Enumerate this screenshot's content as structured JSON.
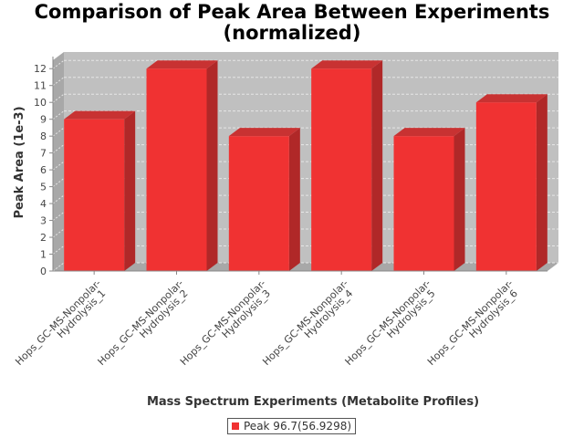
{
  "chart_data": {
    "type": "bar",
    "title_lines": [
      "Comparison of Peak Area Between Experiments",
      "(normalized)"
    ],
    "xlabel": "Mass Spectrum Experiments (Metabolite Profiles)",
    "ylabel": "Peak Area (1e-3)",
    "categories": [
      [
        "Hops_GC-MS-Nonpolar-",
        "Hydrolysis_1"
      ],
      [
        "Hops_GC-MS-Nonpolar-",
        "Hydrolysis_2"
      ],
      [
        "Hops_GC-MS-Nonpolar-",
        "Hydrolysis_3"
      ],
      [
        "Hops_GC-MS-Nonpolar-",
        "Hydrolysis_4"
      ],
      [
        "Hops_GC-MS-Nonpolar-",
        "Hydrolysis_5"
      ],
      [
        "Hops_GC-MS-Nonpolar-",
        "Hydrolysis_6"
      ]
    ],
    "series": [
      {
        "name": "Peak 96.7(56.9298)",
        "values": [
          9,
          12,
          8,
          12,
          8,
          10
        ]
      }
    ],
    "ylim": [
      0,
      12.5
    ],
    "yticks": [
      0,
      1,
      2,
      3,
      4,
      5,
      6,
      7,
      8,
      9,
      10,
      11,
      12
    ],
    "grid": true,
    "legend_position": "bottom-center",
    "colors": {
      "bar_front": "#f03232",
      "bar_top": "#c83232",
      "bar_side": "#b02828",
      "plot_back": "#c0c0c0",
      "plot_floor": "#a8a8a8",
      "grid": "#e6e6e6",
      "axis_text": "#444444",
      "axis_label": "#333333"
    }
  }
}
